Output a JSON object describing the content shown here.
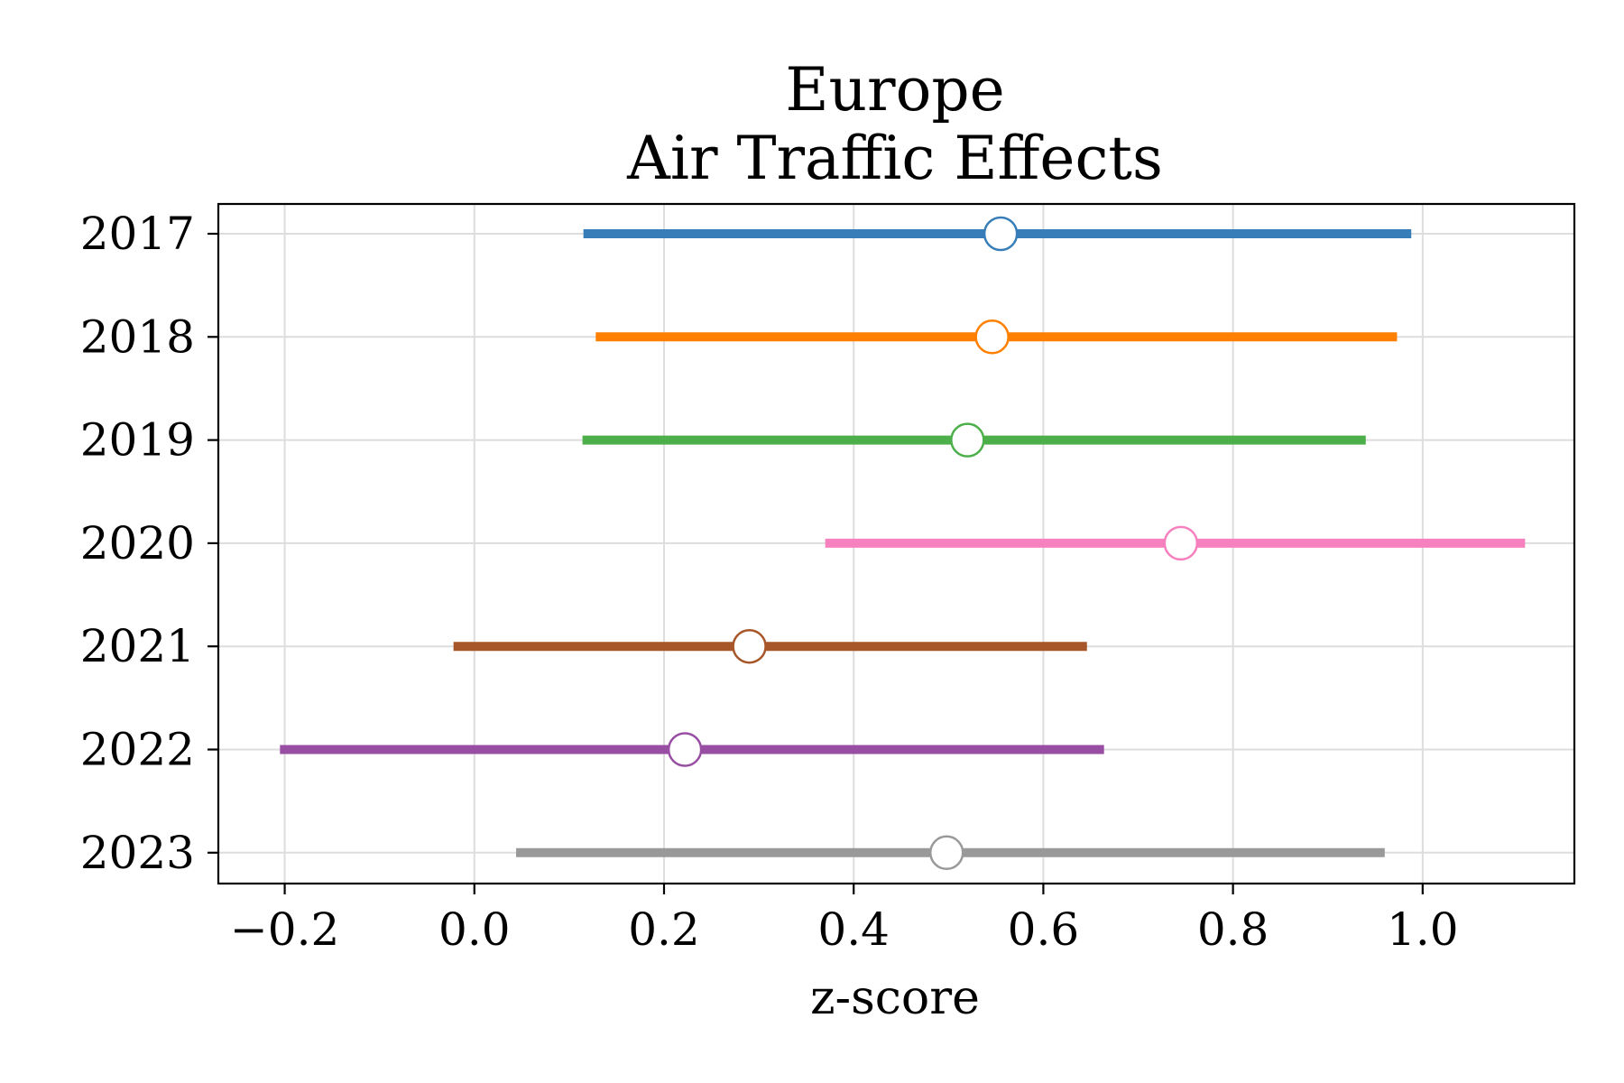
{
  "chart_data": {
    "type": "forest",
    "title_lines": [
      "Europe",
      "Air Traffic Effects"
    ],
    "xlabel": "z-score",
    "ylabel": "",
    "xlim": [
      -0.27,
      1.16
    ],
    "xticks": [
      -0.2,
      0.0,
      0.2,
      0.4,
      0.6,
      0.8,
      1.0
    ],
    "xtick_labels": [
      "−0.2",
      "0.0",
      "0.2",
      "0.4",
      "0.6",
      "0.8",
      "1.0"
    ],
    "grid": true,
    "rows": [
      {
        "label": "2017",
        "estimate": 0.555,
        "low": 0.115,
        "high": 0.988,
        "color": "#377eb8"
      },
      {
        "label": "2018",
        "estimate": 0.546,
        "low": 0.128,
        "high": 0.973,
        "color": "#ff7f00"
      },
      {
        "label": "2019",
        "estimate": 0.52,
        "low": 0.114,
        "high": 0.94,
        "color": "#4daf4a"
      },
      {
        "label": "2020",
        "estimate": 0.745,
        "low": 0.37,
        "high": 1.108,
        "color": "#f781bf"
      },
      {
        "label": "2021",
        "estimate": 0.29,
        "low": -0.022,
        "high": 0.646,
        "color": "#a65628"
      },
      {
        "label": "2022",
        "estimate": 0.222,
        "low": -0.205,
        "high": 0.664,
        "color": "#984ea3"
      },
      {
        "label": "2023",
        "estimate": 0.498,
        "low": 0.044,
        "high": 0.96,
        "color": "#999999"
      }
    ]
  }
}
